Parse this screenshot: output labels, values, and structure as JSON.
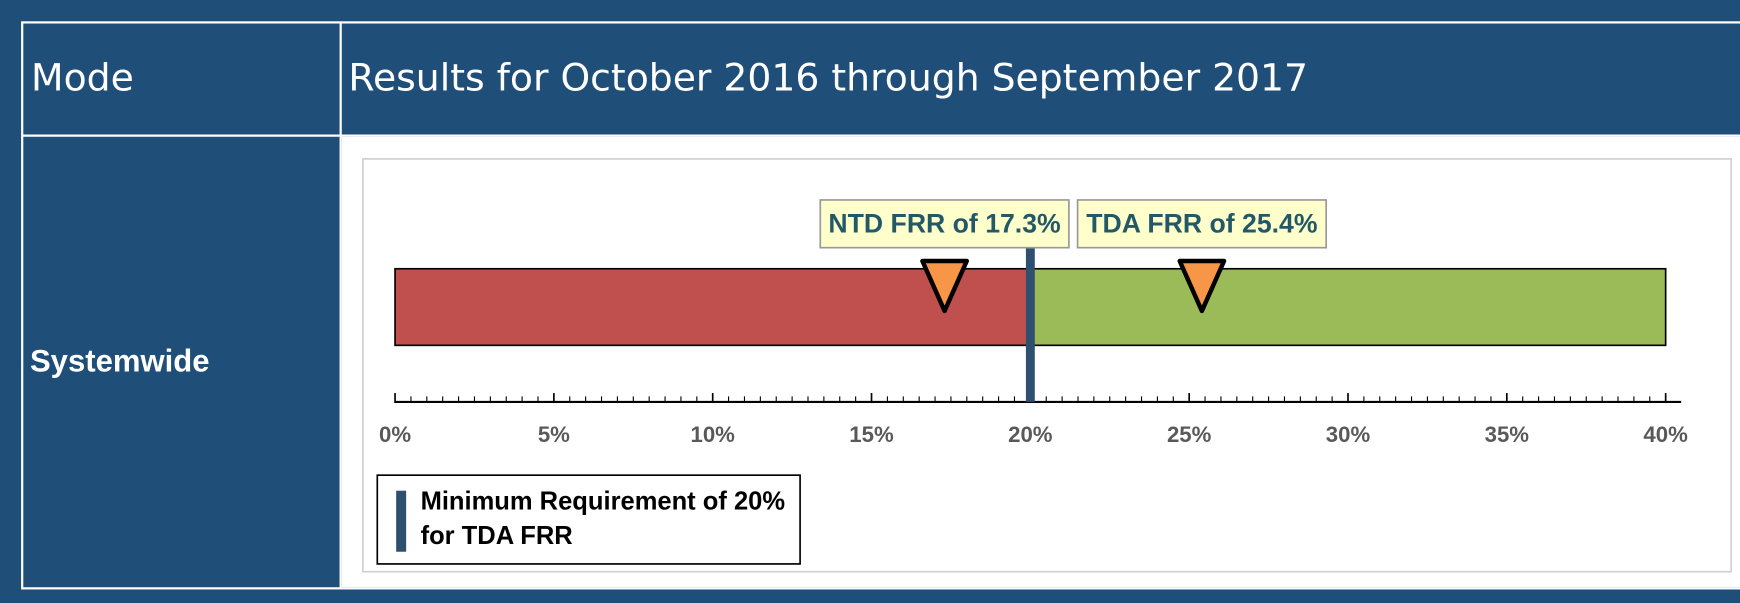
{
  "table": {
    "header": [
      "Mode",
      "Results for October 2016 through September 2017"
    ],
    "row_label": "Systemwide"
  },
  "chart_data": {
    "type": "bullet",
    "xlim": [
      0,
      40
    ],
    "xticks": [
      {
        "value": 0,
        "label": "0%"
      },
      {
        "value": 5,
        "label": "5%"
      },
      {
        "value": 10,
        "label": "10%"
      },
      {
        "value": 15,
        "label": "15%"
      },
      {
        "value": 20,
        "label": "20%"
      },
      {
        "value": 25,
        "label": "25%"
      },
      {
        "value": 30,
        "label": "30%"
      },
      {
        "value": 35,
        "label": "35%"
      },
      {
        "value": 40,
        "label": "40%"
      }
    ],
    "ranges": [
      {
        "from": 0,
        "to": 20,
        "color": "#c0504d"
      },
      {
        "from": 20,
        "to": 40,
        "color": "#9bbb59"
      }
    ],
    "markers": [
      {
        "label": "NTD FRR of 17.3%",
        "value": 17.3,
        "color": "#f79646"
      },
      {
        "label": "TDA FRR of 25.4%",
        "value": 25.4,
        "color": "#f79646"
      }
    ],
    "threshold": {
      "value": 20,
      "label": "Minimum Requirement of 20% for TDA FRR",
      "color": "#2f4f6f"
    }
  }
}
